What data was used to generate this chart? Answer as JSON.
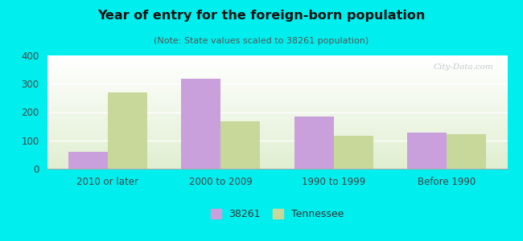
{
  "title": "Year of entry for the foreign-born population",
  "subtitle": "(Note: State values scaled to 38261 population)",
  "categories": [
    "2010 or later",
    "2000 to 2009",
    "1990 to 1999",
    "Before 1990"
  ],
  "values_38261": [
    60,
    318,
    183,
    127
  ],
  "values_tennessee": [
    270,
    168,
    115,
    123
  ],
  "color_38261": "#c9a0dc",
  "color_tennessee": "#c8d89a",
  "ylim": [
    0,
    400
  ],
  "yticks": [
    0,
    100,
    200,
    300,
    400
  ],
  "background_color": "#00eeee",
  "legend_label_38261": "38261",
  "legend_label_tennessee": "Tennessee",
  "bar_width": 0.35,
  "title_fontsize": 11.5,
  "subtitle_fontsize": 8,
  "tick_fontsize": 8.5
}
